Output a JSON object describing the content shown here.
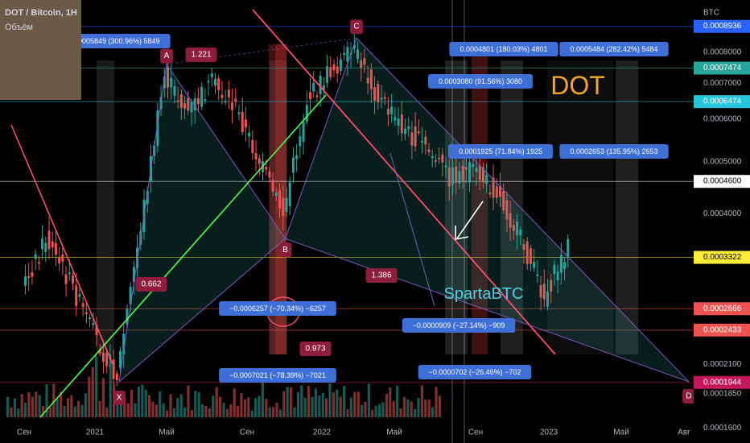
{
  "chart_data": {
    "type": "line",
    "title": "DOT / Bitcoin, 1Н",
    "volume_label": "Объём",
    "currency": "BTC",
    "scale": "log",
    "ylim": [
      0.00015,
      0.00095
    ],
    "big_label": "DOT",
    "author": "SpartaBTC",
    "x_ticks": [
      "Сен",
      "2021",
      "Май",
      "Сен",
      "2022",
      "Май",
      "Сен",
      "2023",
      "Май",
      "Авг"
    ],
    "y_ticks": [
      "0.0008000",
      "0.0007000",
      "0.0006000",
      "0.0005000",
      "0.0004000",
      "0.0002100",
      "0.0001850",
      "0.0001600"
    ],
    "price_levels": [
      {
        "label": "0.0008936",
        "color": "#2962ff"
      },
      {
        "label": "0.0007474",
        "color": "#26a69a"
      },
      {
        "label": "0.0006474",
        "color": "#26c6da"
      },
      {
        "label": "0.0004600",
        "color": "#ffffff"
      },
      {
        "label": "0.0003322",
        "color": "#ffeb3b"
      },
      {
        "label": "0.0002666",
        "color": "#ef5350"
      },
      {
        "label": "0.0002433",
        "color": "#ef5350"
      },
      {
        "label": "0.0001944",
        "color": "#c2185b"
      }
    ],
    "pattern_points": [
      {
        "label": "X",
        "date": "2020-12",
        "value": 0.000195
      },
      {
        "label": "A",
        "date": "2021-02",
        "value": 0.00076
      },
      {
        "label": "B",
        "date": "2021-07",
        "value": 0.00036
      },
      {
        "label": "C",
        "date": "2021-10",
        "value": 0.00085
      },
      {
        "label": "D",
        "date": "2022-12",
        "value": 0.000195
      }
    ],
    "ratios": [
      "1.221",
      "0.662",
      "1.386",
      "0.973"
    ],
    "measures": [
      "0.0005849 (300.96%) 5849",
      "0.0004801 (180.03%) 4801",
      "0.0005484 (282.42%) 5484",
      "0.0003080 (91.56%) 3080",
      "0.0001925 (71.84%) 1925",
      "0.0002653 (135.95%) 2653",
      "−0.0006257 (−70.34%) −6257",
      "−0.0000909 (−27.14%) −909",
      "−0.0007021 (−78.39%) −7021",
      "−0.0000702 (−26.46%) −702"
    ],
    "price_series": [
      {
        "date": "2020-08",
        "value": 0.00029
      },
      {
        "date": "2020-09",
        "value": 0.00036
      },
      {
        "date": "2020-10",
        "value": 0.0003
      },
      {
        "date": "2020-11",
        "value": 0.00024
      },
      {
        "date": "2020-12",
        "value": 0.0002
      },
      {
        "date": "2021-01",
        "value": 0.00038
      },
      {
        "date": "2021-02",
        "value": 0.00072
      },
      {
        "date": "2021-03",
        "value": 0.00062
      },
      {
        "date": "2021-04",
        "value": 0.0007
      },
      {
        "date": "2021-05",
        "value": 0.00063
      },
      {
        "date": "2021-06",
        "value": 0.0005
      },
      {
        "date": "2021-07",
        "value": 0.0004
      },
      {
        "date": "2021-08",
        "value": 0.00065
      },
      {
        "date": "2021-09",
        "value": 0.00074
      },
      {
        "date": "2021-10",
        "value": 0.0008
      },
      {
        "date": "2021-11",
        "value": 0.00066
      },
      {
        "date": "2021-12",
        "value": 0.00058
      },
      {
        "date": "2022-01",
        "value": 0.00053
      },
      {
        "date": "2022-02",
        "value": 0.00047
      },
      {
        "date": "2022-03",
        "value": 0.00048
      },
      {
        "date": "2022-04",
        "value": 0.00044
      },
      {
        "date": "2022-05",
        "value": 0.00036
      },
      {
        "date": "2022-06",
        "value": 0.00028
      },
      {
        "date": "2022-07",
        "value": 0.00035
      }
    ]
  }
}
